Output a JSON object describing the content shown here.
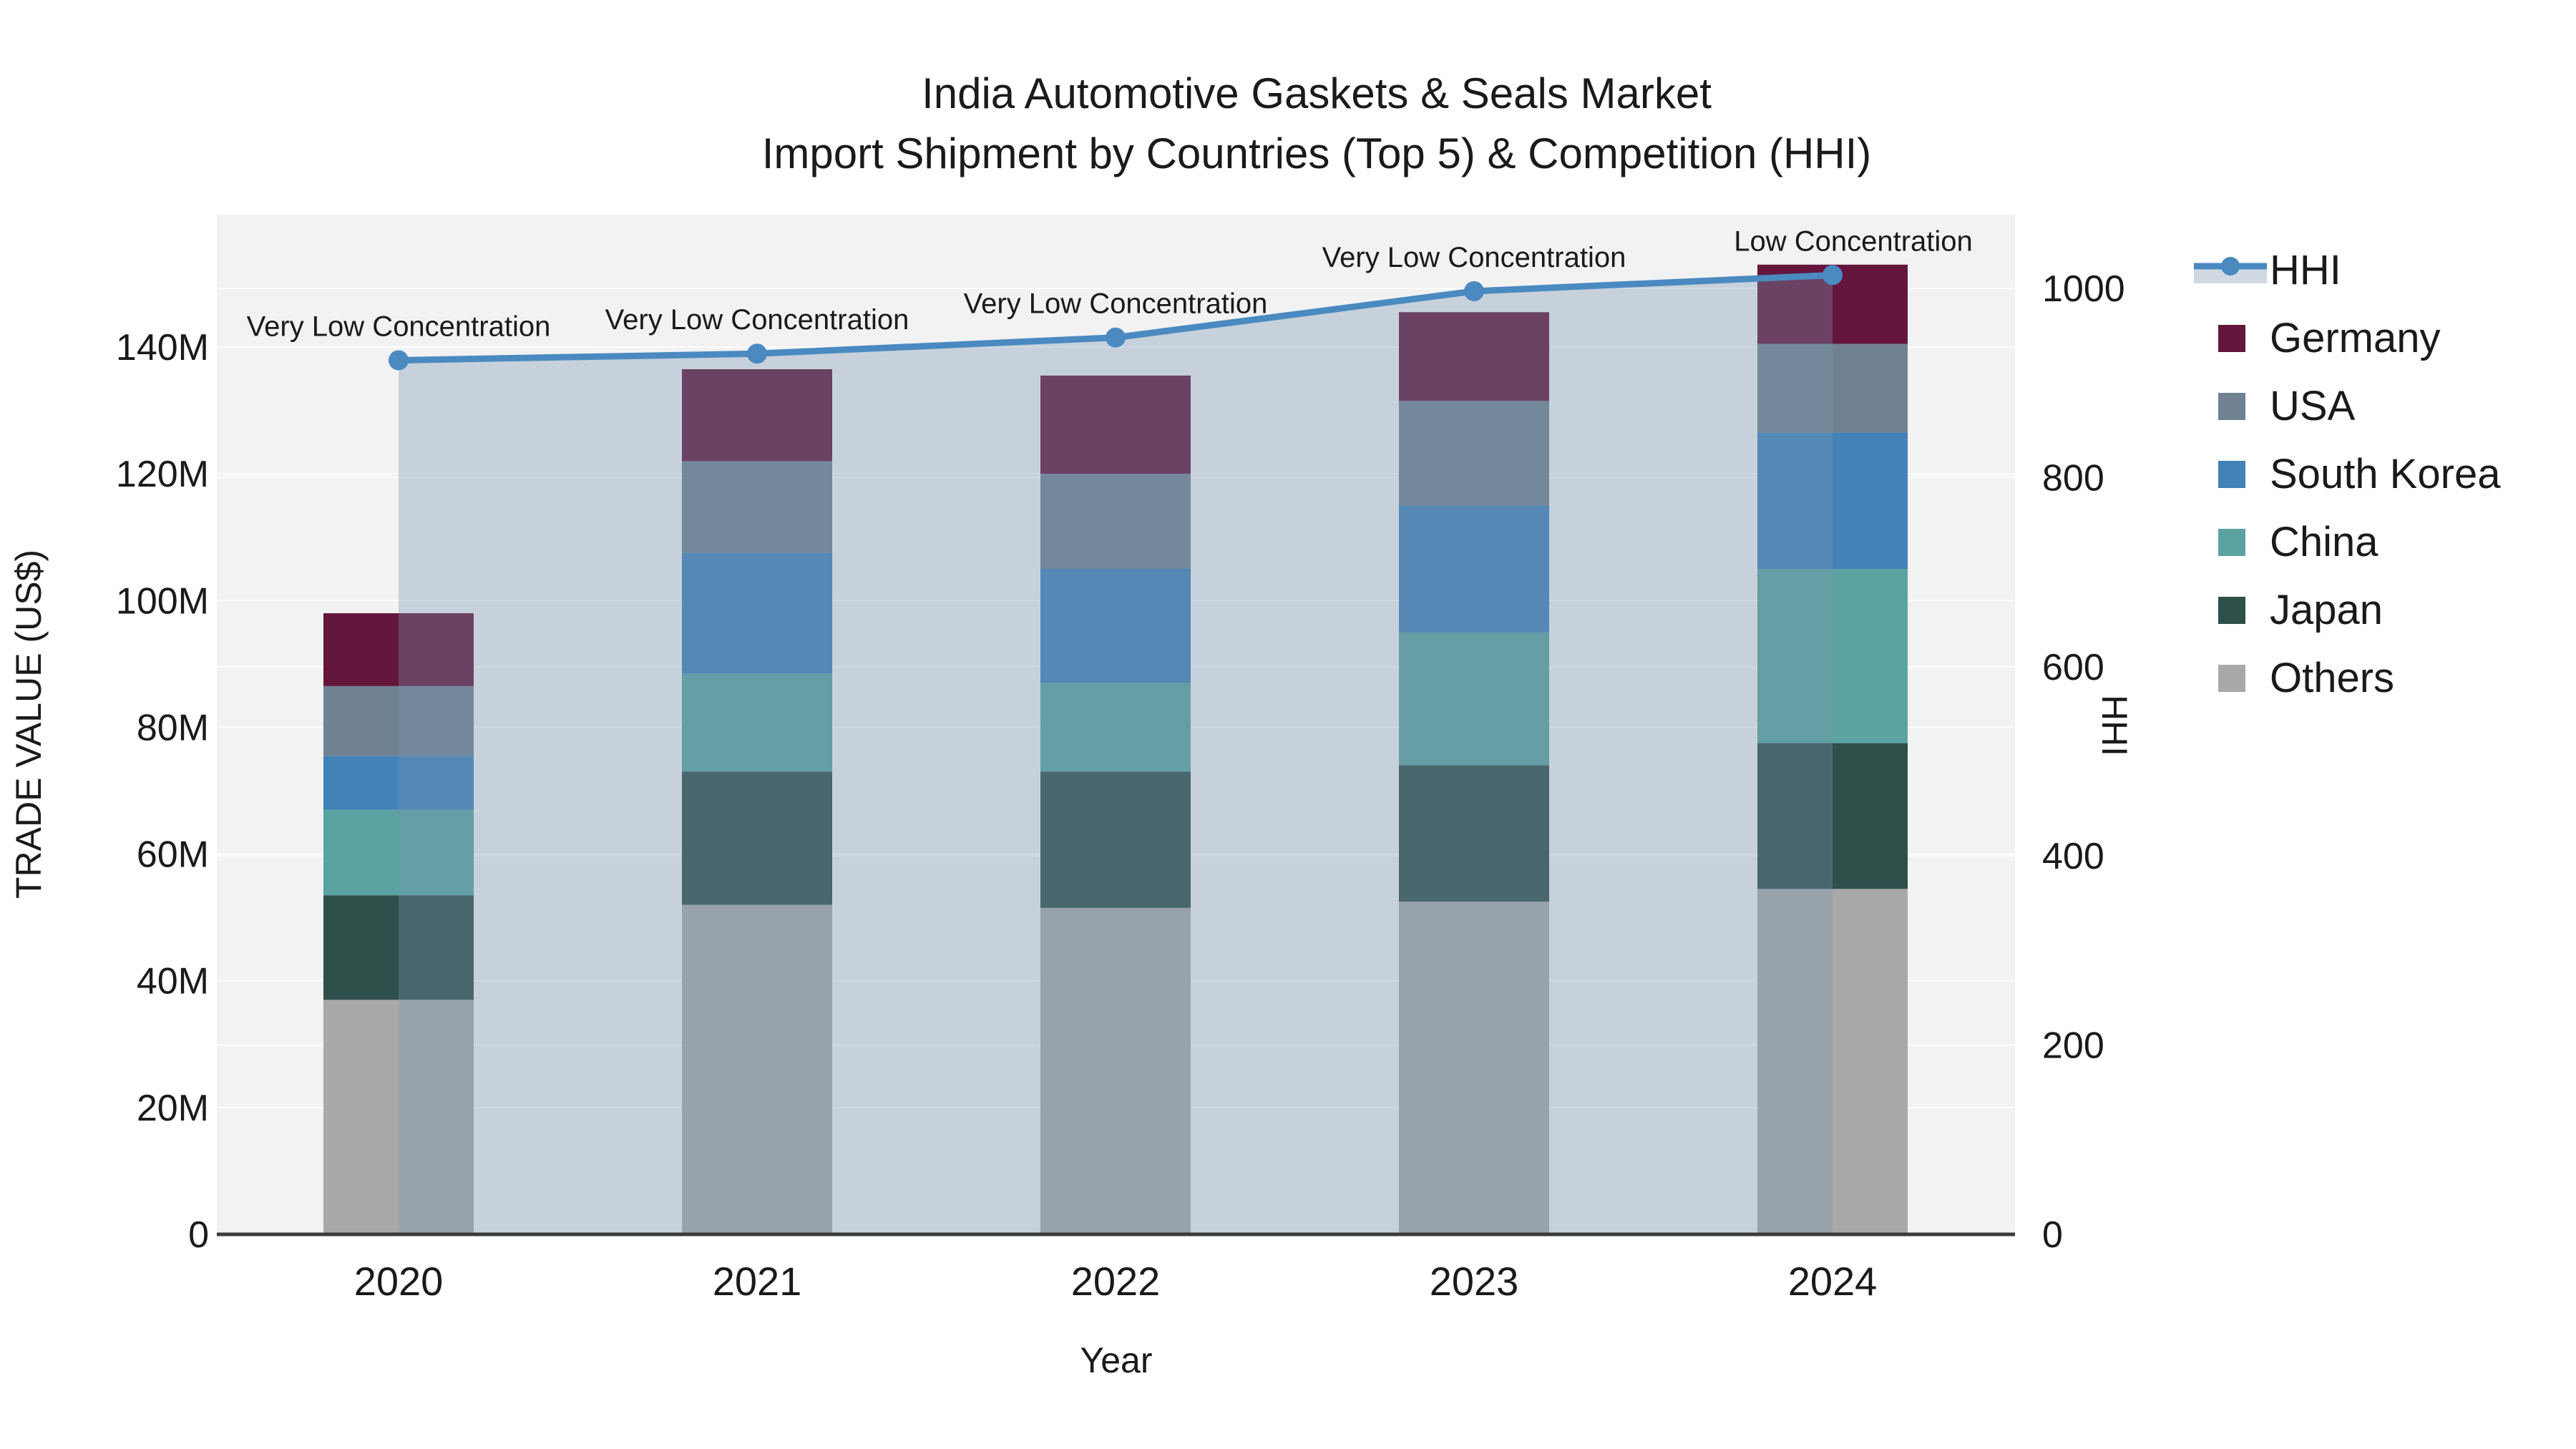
{
  "title": {
    "line1": "India Automotive Gaskets & Seals Market",
    "line2": "Import Shipment by Countries (Top 5) & Competition (HHI)"
  },
  "axes": {
    "left": {
      "title": "TRADE VALUE (US$)",
      "tick_labels": [
        "0",
        "20M",
        "40M",
        "60M",
        "80M",
        "100M",
        "120M",
        "140M"
      ],
      "tick_values_musd": [
        0,
        20,
        40,
        60,
        80,
        100,
        120,
        140
      ],
      "range_musd": [
        0,
        161
      ]
    },
    "right": {
      "title": "HHI",
      "tick_labels": [
        "0",
        "200",
        "400",
        "600",
        "800",
        "1000"
      ],
      "tick_values": [
        0,
        200,
        400,
        600,
        800,
        1000
      ],
      "range": [
        0,
        1078
      ]
    },
    "x": {
      "title": "Year",
      "categories": [
        "2020",
        "2021",
        "2022",
        "2023",
        "2024"
      ]
    }
  },
  "legend": {
    "items": [
      {
        "label": "HHI",
        "kind": "line-area",
        "color": "#4a8ac0",
        "band_color": "#d0d9e2"
      },
      {
        "label": "Germany",
        "kind": "swatch",
        "color": "#64163d"
      },
      {
        "label": "USA",
        "kind": "swatch",
        "color": "#708191"
      },
      {
        "label": "South Korea",
        "kind": "swatch",
        "color": "#4382b8"
      },
      {
        "label": "China",
        "kind": "swatch",
        "color": "#5ba3a0"
      },
      {
        "label": "Japan",
        "kind": "swatch",
        "color": "#2f4f4b"
      },
      {
        "label": "Others",
        "kind": "swatch",
        "color": "#a9a9a9"
      }
    ]
  },
  "chart_data": {
    "type": "combo-stacked-bar-line",
    "categories": [
      "2020",
      "2021",
      "2022",
      "2023",
      "2024"
    ],
    "bar_unit": "Million US$",
    "stack_order_bottom_to_top": [
      "Others",
      "Japan",
      "China",
      "South Korea",
      "USA",
      "Germany"
    ],
    "series": [
      {
        "name": "Germany",
        "color": "#64163d",
        "values": [
          11.5,
          14.5,
          15.5,
          14.0,
          12.5
        ]
      },
      {
        "name": "USA",
        "color": "#708191",
        "values": [
          11.0,
          14.5,
          15.0,
          16.5,
          14.0
        ]
      },
      {
        "name": "South Korea",
        "color": "#4382b8",
        "values": [
          8.5,
          19.0,
          18.0,
          20.0,
          21.5
        ]
      },
      {
        "name": "China",
        "color": "#5ba3a0",
        "values": [
          13.5,
          15.5,
          14.0,
          21.0,
          27.5
        ]
      },
      {
        "name": "Japan",
        "color": "#2f4f4b",
        "values": [
          16.5,
          21.0,
          21.5,
          21.5,
          23.0
        ]
      },
      {
        "name": "Others",
        "color": "#a9a9a9",
        "values": [
          37.0,
          52.0,
          51.5,
          52.5,
          54.5
        ]
      }
    ],
    "bar_totals_musd": [
      98.0,
      136.5,
      135.5,
      145.5,
      153.0
    ],
    "hhi": {
      "name": "HHI",
      "color": "#4a8ac0",
      "values": [
        924,
        931,
        948,
        997,
        1014
      ],
      "area_fill": true,
      "axis": "right"
    },
    "annotations": [
      {
        "category": "2020",
        "text": "Very Low Concentration"
      },
      {
        "category": "2021",
        "text": "Very Low Concentration"
      },
      {
        "category": "2022",
        "text": "Very Low Concentration"
      },
      {
        "category": "2023",
        "text": "Very Low Concentration"
      },
      {
        "category": "2024",
        "text": "Low Concentration"
      }
    ],
    "grid": "on",
    "legend_position": "right"
  },
  "colors": {
    "plot_bg": "#f2f2f3",
    "grid": "#ffffff",
    "axis_line": "#3a3a3a",
    "text": "#1a1a1a",
    "area_overlay": "rgba(120,150,175,0.35)"
  }
}
